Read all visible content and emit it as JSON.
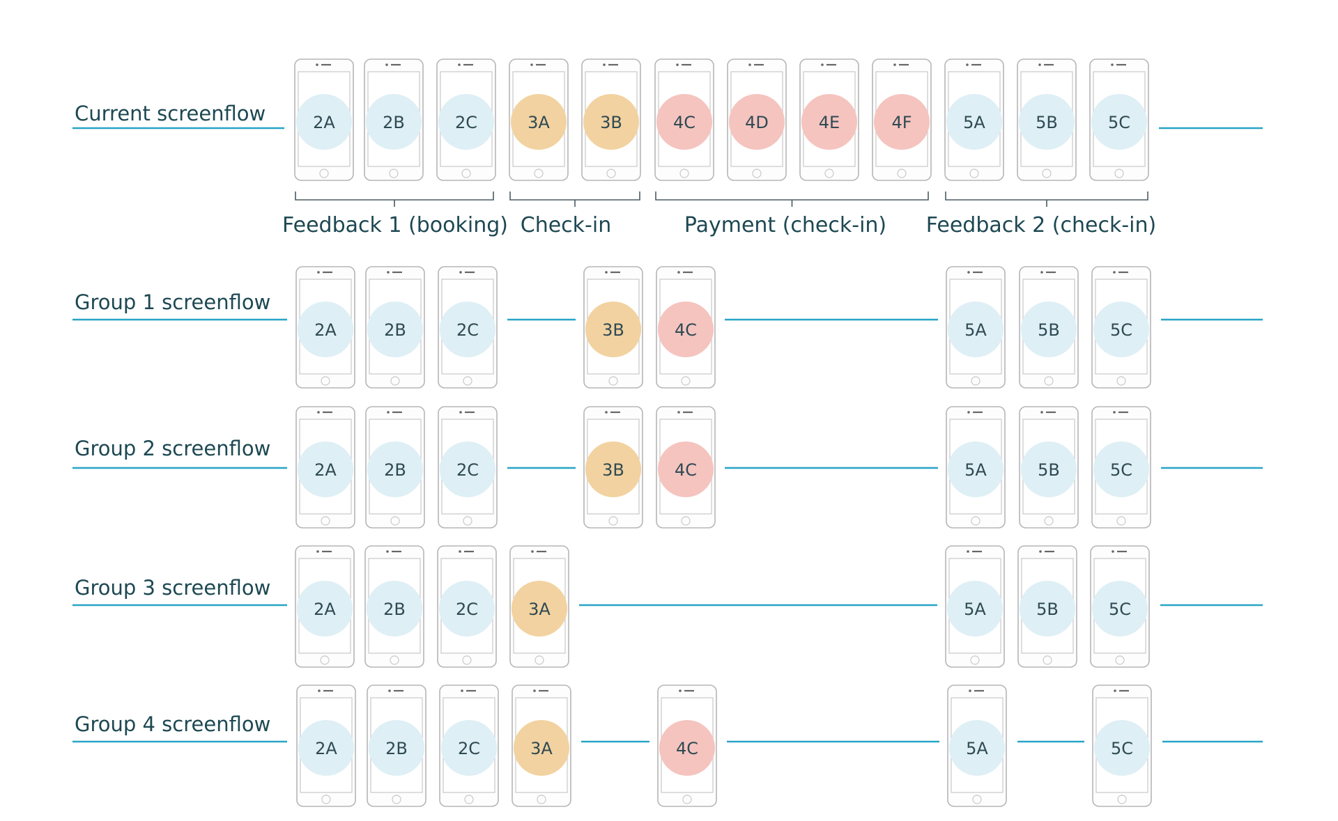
{
  "colors": {
    "line": "#27a5c6",
    "text": "#1d4852",
    "phone_stroke": "#b6b6b6",
    "phone_fill": "#fdfdfd",
    "screen_fill": "#ffffff",
    "category": {
      "blue": "#deeff5",
      "orange": "#f2d2a0",
      "pink": "#f5c4bf"
    }
  },
  "rows": [
    {
      "label": "Current screenflow",
      "screens": [
        {
          "id": "2A",
          "cat": "blue"
        },
        {
          "id": "2B",
          "cat": "blue"
        },
        {
          "id": "2C",
          "cat": "blue"
        },
        {
          "id": "3A",
          "cat": "orange"
        },
        {
          "id": "3B",
          "cat": "orange"
        },
        {
          "id": "4C",
          "cat": "pink"
        },
        {
          "id": "4D",
          "cat": "pink"
        },
        {
          "id": "4E",
          "cat": "pink"
        },
        {
          "id": "4F",
          "cat": "pink"
        },
        {
          "id": "5A",
          "cat": "blue"
        },
        {
          "id": "5B",
          "cat": "blue"
        },
        {
          "id": "5C",
          "cat": "blue"
        }
      ],
      "groups": [
        {
          "label": "Feedback 1 (booking)"
        },
        {
          "label": "Check-in"
        },
        {
          "label": "Payment (check-in)"
        },
        {
          "label": "Feedback 2 (check-in)"
        }
      ]
    },
    {
      "label": "Group 1 screenflow",
      "screens": [
        {
          "id": "2A",
          "cat": "blue"
        },
        {
          "id": "2B",
          "cat": "blue"
        },
        {
          "id": "2C",
          "cat": "blue"
        },
        {
          "id": "3B",
          "cat": "orange"
        },
        {
          "id": "4C",
          "cat": "pink"
        },
        {
          "id": "5A",
          "cat": "blue"
        },
        {
          "id": "5B",
          "cat": "blue"
        },
        {
          "id": "5C",
          "cat": "blue"
        }
      ]
    },
    {
      "label": "Group 2 screenflow",
      "screens": [
        {
          "id": "2A",
          "cat": "blue"
        },
        {
          "id": "2B",
          "cat": "blue"
        },
        {
          "id": "2C",
          "cat": "blue"
        },
        {
          "id": "3B",
          "cat": "orange"
        },
        {
          "id": "4C",
          "cat": "pink"
        },
        {
          "id": "5A",
          "cat": "blue"
        },
        {
          "id": "5B",
          "cat": "blue"
        },
        {
          "id": "5C",
          "cat": "blue"
        }
      ]
    },
    {
      "label": "Group 3 screenflow",
      "screens": [
        {
          "id": "2A",
          "cat": "blue"
        },
        {
          "id": "2B",
          "cat": "blue"
        },
        {
          "id": "2C",
          "cat": "blue"
        },
        {
          "id": "3A",
          "cat": "orange"
        },
        {
          "id": "5A",
          "cat": "blue"
        },
        {
          "id": "5B",
          "cat": "blue"
        },
        {
          "id": "5C",
          "cat": "blue"
        }
      ]
    },
    {
      "label": "Group 4 screenflow",
      "screens": [
        {
          "id": "2A",
          "cat": "blue"
        },
        {
          "id": "2B",
          "cat": "blue"
        },
        {
          "id": "2C",
          "cat": "blue"
        },
        {
          "id": "3A",
          "cat": "orange"
        },
        {
          "id": "4C",
          "cat": "pink"
        },
        {
          "id": "5A",
          "cat": "blue"
        },
        {
          "id": "5C",
          "cat": "blue"
        }
      ]
    }
  ]
}
